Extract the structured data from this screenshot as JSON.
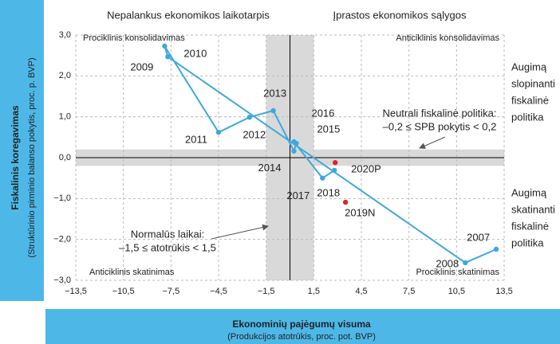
{
  "chart_data": {
    "type": "scatter",
    "header_left": "Nepalankus ekonomikos laikotarpis",
    "header_right": "Įprastos ekonomikos sąlygos",
    "x_label": "Ekonominių pajėgumų visuma",
    "x_sublabel": "(Produkcijos atotrūkis, proc. pot. BVP)",
    "y_label": "Fiskalinis koregavimas",
    "y_sublabel": "(Struktūrinio pirminio balanso pokytis, proc. p. BVP)",
    "quadrants": {
      "top_left": "Prociklinis konsolidavimas",
      "top_right": "Anticiklinis konsolidavimas",
      "bottom_left": "Anticiklinis skatinimas",
      "bottom_right": "Prociklinis skatinimas"
    },
    "right_top": [
      "Augimą",
      "slopinanti",
      "fiskalinė",
      "politika"
    ],
    "right_bottom": [
      "Augimą",
      "skatinanti",
      "fiskalinė",
      "politika"
    ],
    "annotation_neutral": [
      "Neutrali fiskalinė politika:",
      "–0,2 ≤ SPB pokytis < 0,2"
    ],
    "annotation_normal": [
      "Normalūs laikai:",
      "–1,5 ≤ atotrūkis < 1,5"
    ],
    "shaded_x": [
      -1.5,
      1.5
    ],
    "shaded_y": [
      -0.2,
      0.2
    ],
    "xlim": [
      -13.5,
      13.5
    ],
    "ylim": [
      -3.0,
      3.0
    ],
    "xticks": [
      {
        "value": -13.5,
        "label": "−13,5"
      },
      {
        "value": -10.5,
        "label": "−10,5"
      },
      {
        "value": -7.5,
        "label": "−7,5"
      },
      {
        "value": -4.5,
        "label": "−4,5"
      },
      {
        "value": -1.5,
        "label": "−1,5"
      },
      {
        "value": 1.5,
        "label": "1,5"
      },
      {
        "value": 4.5,
        "label": "4,5"
      },
      {
        "value": 7.5,
        "label": "7,5"
      },
      {
        "value": 10.5,
        "label": "10,5"
      },
      {
        "value": 13.5,
        "label": "13,5"
      }
    ],
    "yticks": [
      {
        "value": -3.0,
        "label": "−3,0"
      },
      {
        "value": -2.0,
        "label": "−2,0"
      },
      {
        "value": -1.0,
        "label": "−1,0"
      },
      {
        "value": 0.0,
        "label": "0,0"
      },
      {
        "value": 1.0,
        "label": "1,0"
      },
      {
        "value": 2.0,
        "label": "2,0"
      },
      {
        "value": 3.0,
        "label": "3,0"
      }
    ],
    "grid": true,
    "series": [
      {
        "color": "#3ea8dc",
        "connected": true,
        "labels": [
          "2007",
          "2008",
          "2009",
          "2010",
          "2011",
          "2012",
          "2013",
          "2014",
          "2015",
          "2016",
          "2017",
          "2018"
        ],
        "x": [
          13.0,
          11.05,
          -7.7,
          -7.9,
          -4.5,
          -2.55,
          -1.05,
          0.25,
          0.4,
          0.25,
          2.05,
          2.8
        ],
        "values": [
          -2.24,
          -2.57,
          2.47,
          2.73,
          0.62,
          0.99,
          1.15,
          0.16,
          0.35,
          0.39,
          -0.5,
          -0.31
        ]
      },
      {
        "color": "#d9262a",
        "connected": false,
        "labels": [
          "2019N",
          "2020P"
        ],
        "x": [
          3.5,
          2.85
        ],
        "values": [
          -1.09,
          -0.12
        ]
      }
    ]
  }
}
